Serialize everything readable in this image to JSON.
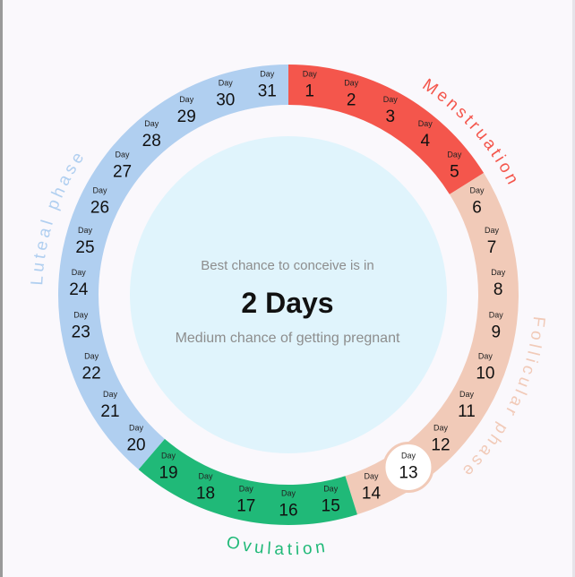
{
  "colors": {
    "menstruation": "#f4564c",
    "follicular": "#f1cab8",
    "ovulation": "#20b978",
    "luteal": "#b0cff0",
    "center_fill": "#e0f4fc",
    "selected_day": "#ffffff"
  },
  "phases": [
    {
      "id": "menstruation",
      "label": "Menstruation",
      "days": [
        1,
        5
      ]
    },
    {
      "id": "follicular",
      "label": "Follicular phase",
      "days": [
        6,
        14
      ]
    },
    {
      "id": "ovulation",
      "label": "Ovulation",
      "days": [
        15,
        19
      ]
    },
    {
      "id": "luteal",
      "label": "Luteal phase",
      "days": [
        20,
        31
      ]
    }
  ],
  "day_prefix": "Day",
  "total_days": 31,
  "selected_day": 13,
  "center": {
    "top_text": "Best chance to conceive is in",
    "main_text": "2 Days",
    "bottom_text": "Medium chance of getting pregnant"
  }
}
